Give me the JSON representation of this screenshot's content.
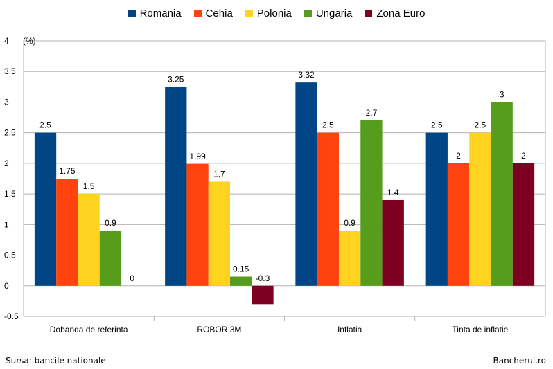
{
  "chart_data": {
    "type": "bar",
    "unit_label": "(%)",
    "categories": [
      "Dobanda de referinta",
      "ROBOR 3M",
      "Inflatia",
      "Tinta de inflatie"
    ],
    "series": [
      {
        "name": "Romania",
        "color": "#004586",
        "values": [
          2.5,
          3.25,
          3.32,
          2.5
        ]
      },
      {
        "name": "Cehia",
        "color": "#ff420e",
        "values": [
          1.75,
          1.99,
          2.5,
          2
        ]
      },
      {
        "name": "Polonia",
        "color": "#ffd320",
        "values": [
          1.5,
          1.7,
          0.9,
          2.5
        ]
      },
      {
        "name": "Ungaria",
        "color": "#579d1c",
        "values": [
          0.9,
          0.15,
          2.7,
          3
        ]
      },
      {
        "name": "Zona Euro",
        "color": "#7e0021",
        "values": [
          0,
          -0.3,
          1.4,
          2
        ]
      }
    ],
    "y_ticks": [
      "4",
      "3.5",
      "3",
      "2.5",
      "2",
      "1.5",
      "1",
      "0.5",
      "0",
      "-0.5"
    ],
    "ylim": [
      -0.5,
      4
    ],
    "legend_position": "top",
    "grid": true
  },
  "footer": {
    "source": "Sursa: bancile nationale",
    "brand": "Bancherul.ro"
  }
}
